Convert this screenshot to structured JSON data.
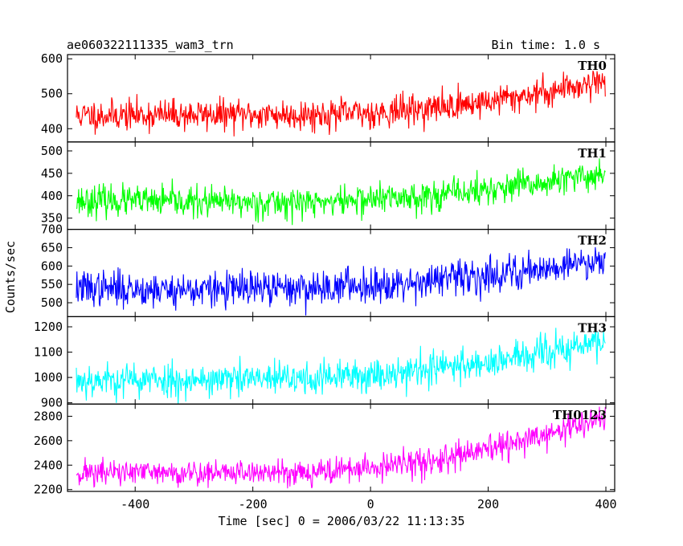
{
  "header": {
    "title": "ae060322111335_wam3_trn",
    "bin_time": "Bin time: 1.0 s"
  },
  "chart_data": {
    "type": "line",
    "xlabel": "Time [sec] 0 = 2006/03/22 11:13:35",
    "ylabel": "Counts/sec",
    "xlim": [
      -515,
      415
    ],
    "x_ticks": [
      -400,
      -200,
      0,
      200,
      400
    ],
    "x_step": 1,
    "x_range_data": [
      -500,
      399
    ],
    "grid": false,
    "series": [
      {
        "name": "TH0",
        "color": "#ff0000",
        "ylim": [
          362,
          612
        ],
        "y_ticks": [
          400,
          500,
          600
        ],
        "trend": [
          [
            -500,
            438
          ],
          [
            -300,
            440
          ],
          [
            -100,
            440
          ],
          [
            0,
            445
          ],
          [
            100,
            458
          ],
          [
            200,
            478
          ],
          [
            300,
            505
          ],
          [
            399,
            540
          ]
        ],
        "noise_sd": 22,
        "seed": 11
      },
      {
        "name": "TH1",
        "color": "#00ff00",
        "ylim": [
          325,
          520
        ],
        "y_ticks": [
          350,
          400,
          450,
          500
        ],
        "trend": [
          [
            -500,
            390
          ],
          [
            -300,
            385
          ],
          [
            -100,
            385
          ],
          [
            0,
            392
          ],
          [
            100,
            400
          ],
          [
            200,
            413
          ],
          [
            300,
            428
          ],
          [
            399,
            450
          ]
        ],
        "noise_sd": 17,
        "seed": 23
      },
      {
        "name": "TH2",
        "color": "#0000ff",
        "ylim": [
          462,
          700
        ],
        "y_ticks": [
          500,
          550,
          600,
          650,
          700
        ],
        "trend": [
          [
            -500,
            540
          ],
          [
            -300,
            535
          ],
          [
            -100,
            540
          ],
          [
            0,
            550
          ],
          [
            100,
            560
          ],
          [
            200,
            575
          ],
          [
            300,
            595
          ],
          [
            399,
            620
          ]
        ],
        "noise_sd": 24,
        "seed": 37
      },
      {
        "name": "TH3",
        "color": "#00ffff",
        "ylim": [
          895,
          1240
        ],
        "y_ticks": [
          900,
          1000,
          1100,
          1200
        ],
        "trend": [
          [
            -500,
            990
          ],
          [
            -300,
            990
          ],
          [
            -100,
            995
          ],
          [
            0,
            1010
          ],
          [
            100,
            1035
          ],
          [
            200,
            1060
          ],
          [
            300,
            1095
          ],
          [
            399,
            1145
          ]
        ],
        "noise_sd": 34,
        "seed": 53
      },
      {
        "name": "TH0123",
        "color": "#ff00ff",
        "ylim": [
          2185,
          2900
        ],
        "y_ticks": [
          2200,
          2400,
          2600,
          2800
        ],
        "trend": [
          [
            -500,
            2340
          ],
          [
            -300,
            2335
          ],
          [
            -100,
            2345
          ],
          [
            0,
            2375
          ],
          [
            100,
            2430
          ],
          [
            200,
            2520
          ],
          [
            300,
            2650
          ],
          [
            399,
            2790
          ]
        ],
        "noise_sd": 55,
        "seed": 71
      }
    ]
  }
}
